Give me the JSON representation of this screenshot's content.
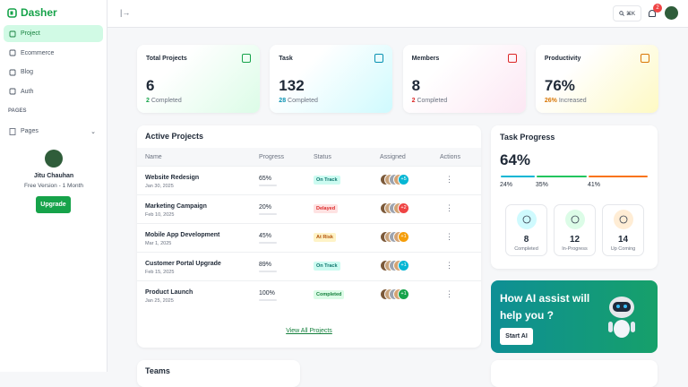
{
  "brand": "Dasher",
  "nav": [
    "Project",
    "Ecommerce",
    "Blog",
    "Auth"
  ],
  "nav_section": "PAGES",
  "pages_item": "Pages",
  "user": {
    "name": "Jitu Chauhan",
    "plan": "Free Version - 1 Month",
    "button": "Upgrade"
  },
  "search_shortcut": "⌘K",
  "notification_count": "2",
  "stats": [
    {
      "title": "Total Projects",
      "value": "6",
      "count": "2",
      "suffix": "Completed",
      "color": "#16a34a"
    },
    {
      "title": "Task",
      "value": "132",
      "count": "28",
      "suffix": "Completed",
      "color": "#0891b2"
    },
    {
      "title": "Members",
      "value": "8",
      "count": "2",
      "suffix": "Completed",
      "color": "#dc2626"
    },
    {
      "title": "Productivity",
      "value": "76%",
      "count": "26%",
      "suffix": "Increased",
      "color": "#d97706"
    }
  ],
  "projects": {
    "title": "Active Projects",
    "columns": [
      "Name",
      "Progress",
      "Status",
      "Assigned",
      "Actions"
    ],
    "rows": [
      {
        "name": "Website Redesign",
        "date": "Jan 30, 2025",
        "progress": 65,
        "progress_label": "65%",
        "bar_color": "#06b6d4",
        "status": "On Track",
        "extra": "+5",
        "extra_color": "#06b6d4"
      },
      {
        "name": "Marketing Campaign",
        "date": "Feb 10, 2025",
        "progress": 20,
        "progress_label": "20%",
        "bar_color": "#ef4444",
        "status": "Delayed",
        "extra": "+2",
        "extra_color": "#ef4444"
      },
      {
        "name": "Mobile App Development",
        "date": "Mar 1, 2025",
        "progress": 45,
        "progress_label": "45%",
        "bar_color": "#f59e0b",
        "status": "At Risk",
        "extra": "+1",
        "extra_color": "#f59e0b"
      },
      {
        "name": "Customer Portal Upgrade",
        "date": "Feb 15, 2025",
        "progress": 89,
        "progress_label": "89%",
        "bar_color": "#06b6d4",
        "status": "On Track",
        "extra": "+1",
        "extra_color": "#06b6d4"
      },
      {
        "name": "Product Launch",
        "date": "Jan 25, 2025",
        "progress": 100,
        "progress_label": "100%",
        "bar_color": "#16a34a",
        "status": "Completed",
        "extra": "+1",
        "extra_color": "#16a34a"
      }
    ],
    "link": "View All Projects"
  },
  "task_progress": {
    "title": "Task Progress",
    "value": "64%",
    "segments": [
      {
        "value": 24,
        "label": "24%",
        "color": "#06b6d4"
      },
      {
        "value": 35,
        "label": "35%",
        "color": "#22c55e"
      },
      {
        "value": 41,
        "label": "41%",
        "color": "#f97316"
      }
    ],
    "counts": [
      {
        "value": "8",
        "label": "Completed",
        "color": "#cffafe"
      },
      {
        "value": "12",
        "label": "In-Progress",
        "color": "#dcfce7"
      },
      {
        "value": "14",
        "label": "Up Coming",
        "color": "#ffedd5"
      }
    ]
  },
  "ai": {
    "title": "How AI assist will help you ?",
    "button": "Start AI"
  },
  "teams": {
    "title": "Teams"
  }
}
